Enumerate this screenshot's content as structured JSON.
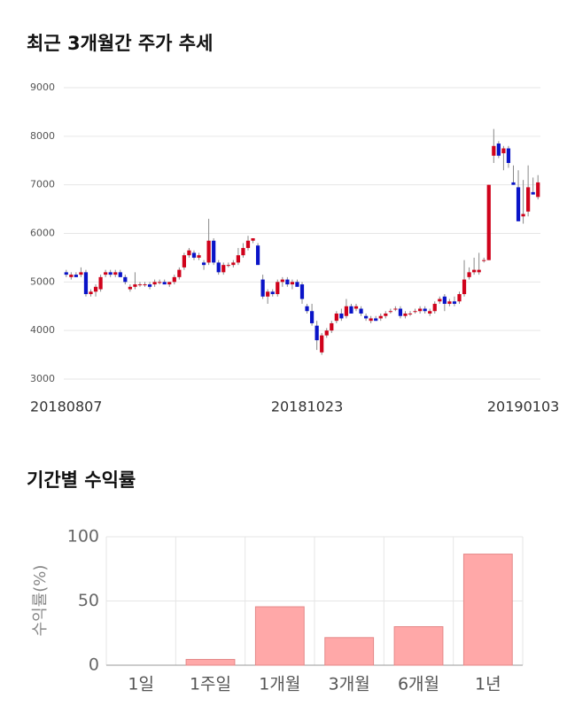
{
  "chart_data": [
    {
      "type": "candlestick",
      "title": "최근 3개월간 주가 추세",
      "categories": [
        "20180807",
        null,
        null,
        null,
        null,
        null,
        null,
        null,
        null,
        null,
        null,
        null,
        null,
        null,
        null,
        null,
        null,
        null,
        null,
        null,
        null,
        null,
        null,
        null,
        null,
        null,
        null,
        null,
        null,
        null,
        null,
        null,
        null,
        null,
        null,
        null,
        null,
        null,
        null,
        null,
        null,
        null,
        null,
        null,
        null,
        null,
        null,
        null,
        null,
        "20181023",
        null,
        null,
        null,
        null,
        null,
        null,
        null,
        null,
        null,
        null,
        null,
        null,
        null,
        null,
        null,
        null,
        null,
        null,
        null,
        null,
        null,
        null,
        null,
        null,
        null,
        null,
        null,
        null,
        null,
        null,
        null,
        null,
        null,
        null,
        null,
        null,
        null,
        null,
        null,
        null,
        null,
        null,
        null,
        "20190103",
        null,
        null,
        null
      ],
      "values": [
        [
          5200,
          5250,
          5100,
          5150
        ],
        [
          5100,
          5200,
          5050,
          5150
        ],
        [
          5150,
          5200,
          5100,
          5100
        ],
        [
          5150,
          5300,
          5100,
          5200
        ],
        [
          5200,
          5250,
          4700,
          4750
        ],
        [
          4750,
          4850,
          4700,
          4800
        ],
        [
          4800,
          4950,
          4700,
          4900
        ],
        [
          4850,
          5150,
          4800,
          5100
        ],
        [
          5150,
          5250,
          5100,
          5200
        ],
        [
          5200,
          5250,
          5100,
          5150
        ],
        [
          5150,
          5250,
          5100,
          5200
        ],
        [
          5200,
          5250,
          5100,
          5100
        ],
        [
          5100,
          5150,
          4950,
          5000
        ],
        [
          4850,
          4950,
          4800,
          4900
        ],
        [
          4900,
          5200,
          4850,
          4950
        ],
        [
          4950,
          5000,
          4900,
          4950
        ],
        [
          4950,
          5000,
          4900,
          4950
        ],
        [
          4950,
          5000,
          4850,
          4900
        ],
        [
          4950,
          5050,
          4900,
          5000
        ],
        [
          4980,
          5050,
          4950,
          5000
        ],
        [
          5000,
          5050,
          4950,
          4950
        ],
        [
          4950,
          5000,
          4900,
          5000
        ],
        [
          5000,
          5150,
          4950,
          5100
        ],
        [
          5100,
          5300,
          5050,
          5250
        ],
        [
          5300,
          5600,
          5250,
          5550
        ],
        [
          5550,
          5700,
          5500,
          5650
        ],
        [
          5600,
          5650,
          5450,
          5500
        ],
        [
          5500,
          5600,
          5450,
          5550
        ],
        [
          5400,
          5450,
          5250,
          5350
        ],
        [
          5400,
          6300,
          5350,
          5850
        ],
        [
          5850,
          5900,
          5350,
          5400
        ],
        [
          5400,
          5450,
          5150,
          5200
        ],
        [
          5200,
          5400,
          5150,
          5350
        ],
        [
          5350,
          5400,
          5300,
          5350
        ],
        [
          5350,
          5450,
          5300,
          5400
        ],
        [
          5400,
          5700,
          5350,
          5550
        ],
        [
          5550,
          5800,
          5500,
          5700
        ],
        [
          5700,
          5950,
          5650,
          5850
        ],
        [
          5850,
          5900,
          5800,
          5900
        ],
        [
          5750,
          5800,
          5350,
          5350
        ],
        [
          5050,
          5150,
          4650,
          4700
        ],
        [
          4700,
          4850,
          4550,
          4800
        ],
        [
          4800,
          4850,
          4700,
          4750
        ],
        [
          4750,
          5050,
          4700,
          5000
        ],
        [
          5000,
          5100,
          4900,
          5050
        ],
        [
          5050,
          5100,
          4900,
          4950
        ],
        [
          4950,
          5050,
          4850,
          5000
        ],
        [
          5000,
          5050,
          4900,
          4900
        ],
        [
          4950,
          5000,
          4550,
          4650
        ],
        [
          4500,
          4550,
          4350,
          4400
        ],
        [
          4400,
          4550,
          4100,
          4150
        ],
        [
          4100,
          4200,
          3600,
          3800
        ],
        [
          3550,
          3950,
          3500,
          3900
        ],
        [
          3900,
          4050,
          3850,
          4000
        ],
        [
          4000,
          4200,
          3950,
          4150
        ],
        [
          4200,
          4400,
          4150,
          4350
        ],
        [
          4350,
          4450,
          4200,
          4250
        ],
        [
          4300,
          4650,
          4250,
          4500
        ],
        [
          4500,
          4550,
          4350,
          4350
        ],
        [
          4450,
          4550,
          4400,
          4500
        ],
        [
          4450,
          4500,
          4300,
          4350
        ],
        [
          4300,
          4350,
          4200,
          4250
        ],
        [
          4200,
          4300,
          4150,
          4250
        ],
        [
          4250,
          4300,
          4200,
          4200
        ],
        [
          4250,
          4350,
          4200,
          4300
        ],
        [
          4300,
          4400,
          4250,
          4350
        ],
        [
          4400,
          4450,
          4350,
          4400
        ],
        [
          4450,
          4500,
          4400,
          4450
        ],
        [
          4450,
          4500,
          4250,
          4300
        ],
        [
          4300,
          4400,
          4250,
          4350
        ],
        [
          4350,
          4400,
          4300,
          4350
        ],
        [
          4400,
          4450,
          4350,
          4400
        ],
        [
          4400,
          4500,
          4350,
          4450
        ],
        [
          4450,
          4500,
          4350,
          4400
        ],
        [
          4350,
          4450,
          4300,
          4400
        ],
        [
          4400,
          4600,
          4350,
          4550
        ],
        [
          4600,
          4700,
          4550,
          4650
        ],
        [
          4700,
          4750,
          4400,
          4550
        ],
        [
          4550,
          4650,
          4500,
          4600
        ],
        [
          4600,
          4700,
          4500,
          4550
        ],
        [
          4600,
          4800,
          4550,
          4750
        ],
        [
          4750,
          5450,
          4700,
          5050
        ],
        [
          5100,
          5300,
          5050,
          5200
        ],
        [
          5200,
          5500,
          5150,
          5250
        ],
        [
          5200,
          5600,
          5150,
          5250
        ],
        [
          5450,
          5500,
          5400,
          5450
        ],
        [
          5450,
          7000,
          5450,
          7000
        ],
        [
          7600,
          8150,
          7450,
          7800
        ],
        [
          7850,
          7900,
          7550,
          7600
        ],
        [
          7650,
          7800,
          7300,
          7750
        ],
        [
          7750,
          7800,
          7350,
          7450
        ],
        [
          7050,
          7400,
          7000,
          7000
        ],
        [
          6950,
          7300,
          6250,
          6250
        ],
        [
          6350,
          7100,
          6200,
          6400
        ],
        [
          6450,
          7400,
          6350,
          6950
        ],
        [
          6850,
          7150,
          6800,
          6800
        ],
        [
          6750,
          7200,
          6700,
          7050
        ]
      ],
      "up_color": "#d0021b",
      "down_color": "#0a14c8",
      "ylim": [
        3000,
        9000
      ],
      "yticks": [
        3000,
        4000,
        5000,
        6000,
        7000,
        8000,
        9000
      ],
      "grid": true
    },
    {
      "type": "bar",
      "title": "기간별 수익률",
      "y_label": "수익률(%)",
      "categories": [
        "1일",
        "1주일",
        "1개월",
        "3개월",
        "6개월",
        "1년"
      ],
      "values": [
        0,
        4.5,
        45.5,
        21.5,
        30,
        86.5
      ],
      "color": "#ffa8a8",
      "ylim": [
        0,
        100
      ],
      "yticks": [
        0,
        50,
        100
      ],
      "grid": true
    }
  ]
}
